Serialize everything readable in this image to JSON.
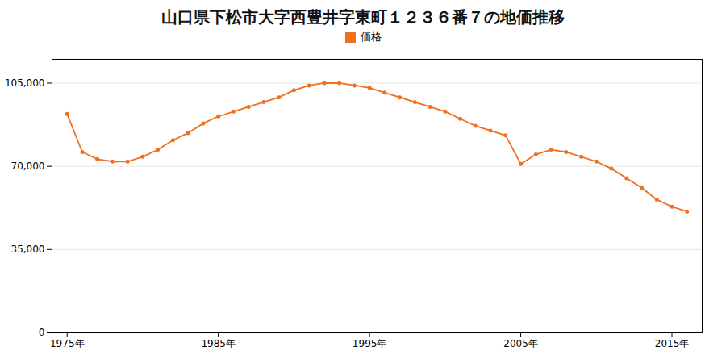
{
  "chart_data": {
    "type": "line",
    "title": "山口県下松市大字西豊井字東町１２３６番７の地価推移",
    "x": [
      1975,
      1976,
      1977,
      1978,
      1979,
      1980,
      1981,
      1982,
      1983,
      1984,
      1985,
      1986,
      1987,
      1988,
      1989,
      1990,
      1991,
      1992,
      1993,
      1994,
      1995,
      1996,
      1997,
      1998,
      1999,
      2000,
      2001,
      2002,
      2003,
      2004,
      2005,
      2006,
      2007,
      2008,
      2009,
      2010,
      2011,
      2012,
      2013,
      2014,
      2015,
      2016
    ],
    "series": [
      {
        "name": "価格",
        "color": "#f07020",
        "marker": "circle",
        "values": [
          92000,
          76000,
          73000,
          72000,
          72000,
          74000,
          77000,
          81000,
          84000,
          88000,
          91000,
          93000,
          95000,
          97000,
          99000,
          102000,
          104000,
          105000,
          105000,
          104000,
          103000,
          101000,
          99000,
          97000,
          95000,
          93000,
          90000,
          87000,
          85000,
          83000,
          71000,
          75000,
          77000,
          76000,
          74000,
          72000,
          69000,
          65000,
          61000,
          56000,
          53000,
          51000
        ]
      }
    ],
    "xlim": [
      1974,
      2017
    ],
    "xticks": [
      {
        "value": 1975,
        "label": "1975年"
      },
      {
        "value": 1985,
        "label": "1985年"
      },
      {
        "value": 1995,
        "label": "1995年"
      },
      {
        "value": 2005,
        "label": "2005年"
      },
      {
        "value": 2015,
        "label": "2015年"
      }
    ],
    "ylim": [
      0,
      115000
    ],
    "yticks": [
      0,
      {
        "value": 35000,
        "label": "35,000"
      },
      {
        "value": 70000,
        "label": "70,000"
      },
      {
        "value": 105000,
        "label": "105,000"
      }
    ],
    "grid": true,
    "legend": "top"
  }
}
